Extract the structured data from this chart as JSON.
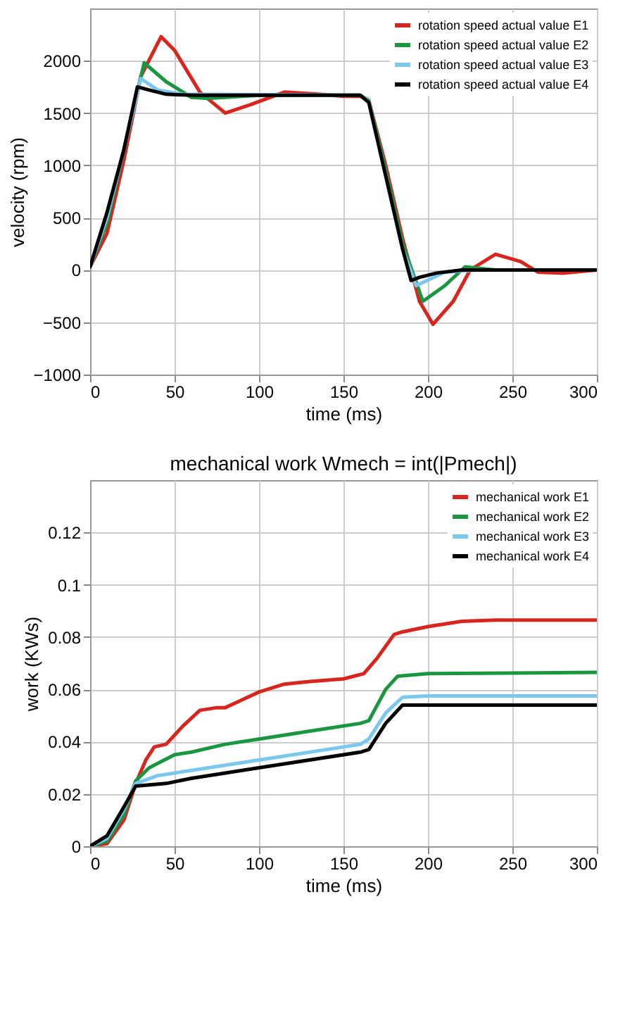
{
  "chart_data": [
    {
      "type": "line",
      "xlabel": "time (ms)",
      "ylabel": "velocity (rpm)",
      "xlim": [
        0,
        300
      ],
      "xticks": [
        0,
        50,
        100,
        150,
        200,
        250,
        300
      ],
      "ylim": [
        -1000,
        2500
      ],
      "yticks": [
        -1000,
        -500,
        0,
        500,
        1000,
        1500,
        2000
      ],
      "grid": true,
      "legend": "top right",
      "marker": "none",
      "line_style": "solid",
      "series": [
        {
          "name": "rotation speed actual value E1",
          "color": "#d7261e",
          "x": [
            0,
            10,
            20,
            30,
            42,
            50,
            65,
            80,
            95,
            115,
            135,
            150,
            160,
            165,
            175,
            185,
            195,
            203,
            215,
            225,
            240,
            255,
            265,
            280,
            300
          ],
          "values": [
            30,
            350,
            1050,
            1850,
            2230,
            2100,
            1700,
            1500,
            1580,
            1700,
            1680,
            1660,
            1660,
            1620,
            1000,
            300,
            -300,
            -520,
            -300,
            0,
            150,
            80,
            -20,
            -30,
            0
          ]
        },
        {
          "name": "rotation speed actual value E2",
          "color": "#1a9641",
          "x": [
            0,
            10,
            20,
            32,
            45,
            60,
            70,
            100,
            160,
            165,
            175,
            185,
            197,
            210,
            222,
            240,
            300
          ],
          "values": [
            30,
            450,
            1150,
            1980,
            1800,
            1650,
            1640,
            1670,
            1670,
            1620,
            950,
            250,
            -300,
            -150,
            30,
            0,
            0
          ]
        },
        {
          "name": "rotation speed actual value E3",
          "color": "#7cc7ee",
          "x": [
            0,
            10,
            20,
            30,
            40,
            55,
            160,
            165,
            175,
            185,
            193,
            210,
            230,
            300
          ],
          "values": [
            30,
            500,
            1150,
            1830,
            1720,
            1680,
            1670,
            1610,
            900,
            200,
            -150,
            -20,
            0,
            0
          ]
        },
        {
          "name": "rotation speed actual value E4",
          "color": "#000000",
          "x": [
            0,
            10,
            20,
            28,
            35,
            45,
            60,
            160,
            165,
            175,
            185,
            190,
            195,
            205,
            220,
            300
          ],
          "values": [
            30,
            550,
            1150,
            1750,
            1720,
            1680,
            1670,
            1670,
            1600,
            900,
            200,
            -100,
            -70,
            -30,
            0,
            0
          ]
        }
      ]
    },
    {
      "type": "line",
      "title": "mechanical work Wmech = int(|Pmech|)",
      "xlabel": "time (ms)",
      "ylabel": "work (KWs)",
      "xlim": [
        0,
        300
      ],
      "xticks": [
        0,
        50,
        100,
        150,
        200,
        250,
        300
      ],
      "ylim": [
        0,
        0.14
      ],
      "yticks": [
        0,
        0.02,
        0.04,
        0.06,
        0.08,
        0.1,
        0.12
      ],
      "grid": true,
      "legend": "top right",
      "marker": "none",
      "line_style": "solid",
      "series": [
        {
          "name": "mechanical work E1",
          "color": "#d7261e",
          "x": [
            0,
            10,
            20,
            27,
            33,
            38,
            45,
            55,
            65,
            75,
            80,
            90,
            100,
            115,
            130,
            150,
            162,
            170,
            180,
            185,
            200,
            220,
            240,
            300
          ],
          "values": [
            0,
            0.001,
            0.01,
            0.024,
            0.033,
            0.038,
            0.039,
            0.046,
            0.052,
            0.053,
            0.053,
            0.056,
            0.059,
            0.062,
            0.063,
            0.064,
            0.066,
            0.072,
            0.081,
            0.082,
            0.084,
            0.086,
            0.0865,
            0.0865
          ]
        },
        {
          "name": "mechanical work E2",
          "color": "#1a9641",
          "x": [
            0,
            10,
            20,
            27,
            35,
            50,
            60,
            80,
            100,
            130,
            160,
            165,
            175,
            182,
            200,
            300
          ],
          "values": [
            0,
            0.002,
            0.012,
            0.025,
            0.03,
            0.035,
            0.036,
            0.039,
            0.041,
            0.044,
            0.047,
            0.048,
            0.06,
            0.065,
            0.066,
            0.0665
          ]
        },
        {
          "name": "mechanical work E3",
          "color": "#7cc7ee",
          "x": [
            0,
            10,
            20,
            27,
            40,
            60,
            100,
            160,
            165,
            175,
            185,
            200,
            300
          ],
          "values": [
            0,
            0.003,
            0.014,
            0.024,
            0.027,
            0.029,
            0.033,
            0.039,
            0.041,
            0.051,
            0.057,
            0.0575,
            0.0575
          ]
        },
        {
          "name": "mechanical work E4",
          "color": "#000000",
          "x": [
            0,
            10,
            20,
            27,
            45,
            60,
            100,
            160,
            165,
            175,
            185,
            300
          ],
          "values": [
            0,
            0.004,
            0.015,
            0.023,
            0.024,
            0.026,
            0.03,
            0.036,
            0.037,
            0.047,
            0.054,
            0.054
          ]
        }
      ]
    }
  ]
}
